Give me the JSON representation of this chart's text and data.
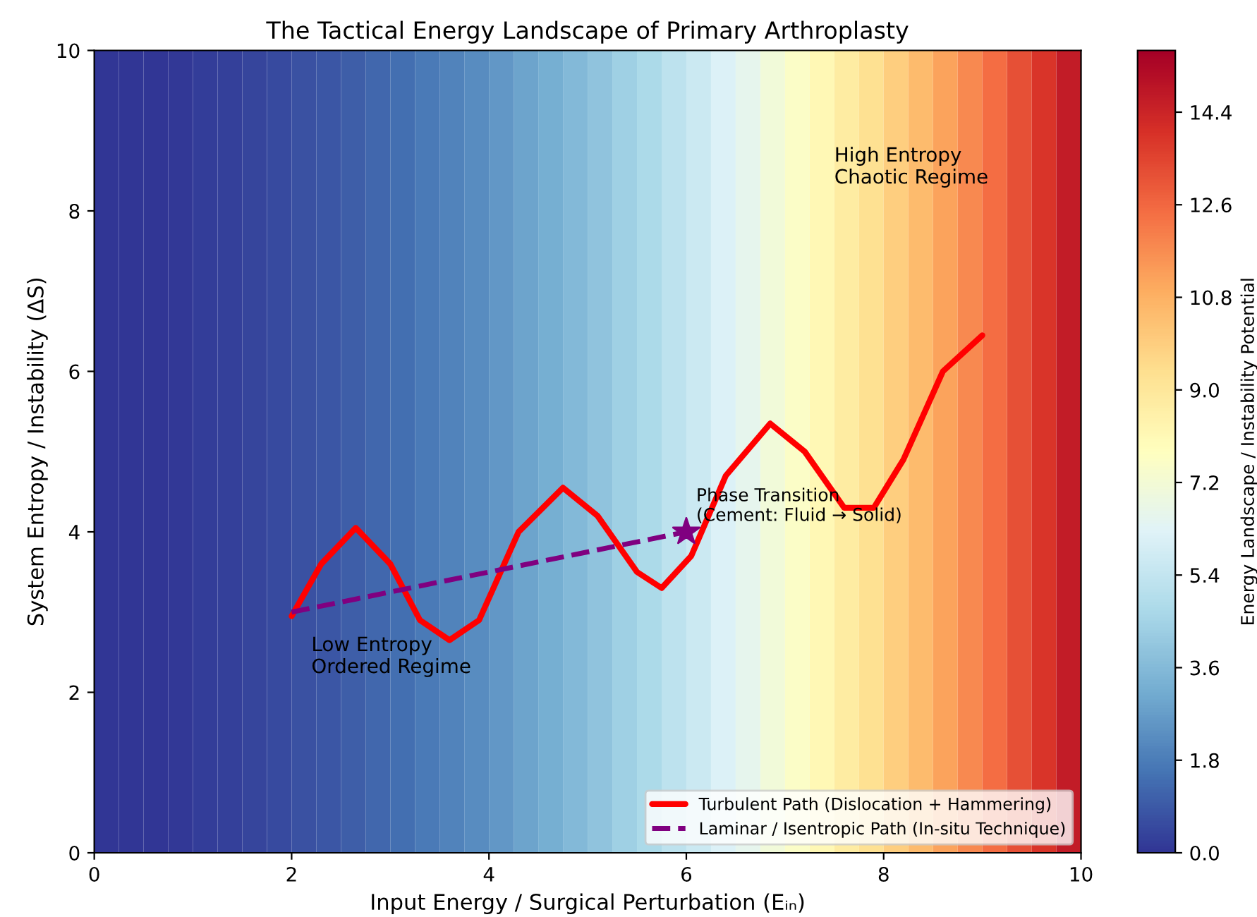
{
  "chart_data": {
    "type": "heatmap",
    "title": "The Tactical Energy Landscape of Primary Arthroplasty",
    "xlabel": "Input Energy / Surgical Perturbation (Eᵢₙ)",
    "ylabel": "System Entropy / Instability (ΔS)",
    "clabel": "Energy Landscape / Instability Potential",
    "x": [
      0.125,
      0.375,
      0.625,
      0.875,
      1.125,
      1.375,
      1.625,
      1.875,
      2.125,
      2.375,
      2.625,
      2.875,
      3.125,
      3.375,
      3.625,
      3.875,
      4.125,
      4.375,
      4.625,
      4.875,
      5.125,
      5.375,
      5.625,
      5.875,
      6.125,
      6.375,
      6.625,
      6.875,
      7.125,
      7.375,
      7.625,
      7.875,
      8.125,
      8.375,
      8.625,
      8.875,
      9.125,
      9.375,
      9.625,
      9.875
    ],
    "cells": [
      [
        0.0,
        0.02,
        0.06,
        0.11,
        0.19,
        0.28,
        0.4,
        0.53,
        0.68,
        0.85,
        1.03,
        1.24,
        1.46,
        1.71,
        1.97,
        2.25,
        2.55,
        2.87,
        3.21,
        3.56,
        3.94,
        4.33,
        4.75,
        5.18,
        5.63,
        6.1,
        6.58,
        7.09,
        7.61,
        8.16,
        8.72,
        9.3,
        9.9,
        10.52,
        11.16,
        11.81,
        12.49,
        13.18,
        13.9,
        14.63
      ]
    ],
    "clim": [
      0,
      15.6
    ],
    "cticks": [
      {
        "value": 0,
        "label": "0.0"
      },
      1.8,
      3.6,
      5.4,
      7.2,
      {
        "value": 9,
        "label": "9.0"
      },
      10.8,
      12.6,
      14.4
    ],
    "xlim": [
      0,
      10
    ],
    "ylim": [
      0,
      10
    ],
    "xticks": [
      0,
      2,
      4,
      6,
      8,
      10
    ],
    "yticks": [
      0,
      2,
      4,
      6,
      8,
      10
    ],
    "series": [
      {
        "type": "line",
        "name": "Turbulent Path (Dislocation + Hammering)",
        "color": "#ff0000",
        "line_style": "solid",
        "x": [
          2,
          2.3,
          2.65,
          3,
          3.3,
          3.6,
          3.9,
          4.3,
          4.75,
          5.1,
          5.5,
          5.75,
          6.05,
          6.4,
          6.85,
          7.2,
          7.6,
          7.9,
          8.2,
          8.6,
          9
        ],
        "values": [
          2.95,
          3.6,
          4.05,
          3.6,
          2.9,
          2.65,
          2.9,
          4.0,
          4.55,
          4.2,
          3.5,
          3.3,
          3.7,
          4.7,
          5.35,
          5.0,
          4.3,
          4.3,
          4.9,
          6.0,
          6.45
        ]
      },
      {
        "type": "line",
        "name": "Laminar / Isentropic Path (In-situ Technique)",
        "color": "#800080",
        "line_style": "dashed",
        "x": [
          2,
          6
        ],
        "values": [
          3,
          4
        ]
      },
      {
        "type": "scatter",
        "color": "#800080",
        "marker": "star",
        "x": [
          6
        ],
        "values": [
          4
        ]
      }
    ],
    "annotations": [
      "Phase Transition\n(Cement: Fluid → Solid)",
      "Low Entropy\nOrdered Regime",
      "High Entropy\nChaotic Regime"
    ],
    "legend": "bottom right",
    "grid": false
  }
}
